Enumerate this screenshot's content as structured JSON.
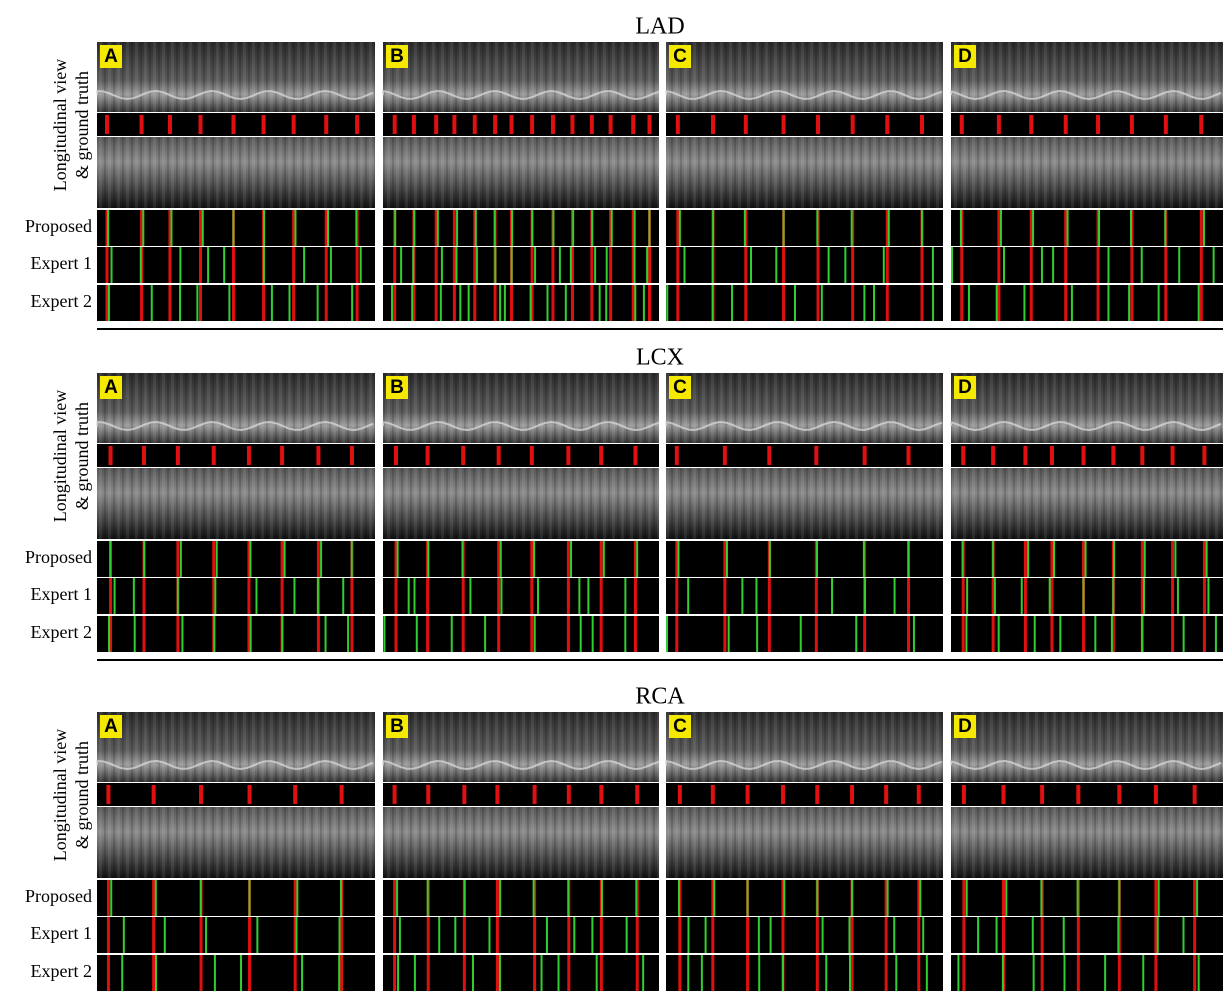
{
  "sections": [
    {
      "title": "LAD",
      "view_label": [
        "Longitudinal view",
        "& ground truth"
      ],
      "rows": [
        "Proposed",
        "Expert 1",
        "Expert 2"
      ],
      "panels": [
        "A",
        "B",
        "C",
        "D"
      ]
    },
    {
      "title": "LCX",
      "view_label": [
        "Longitudinal view",
        "& ground truth"
      ],
      "rows": [
        "Proposed",
        "Expert 1",
        "Expert 2"
      ],
      "panels": [
        "A",
        "B",
        "C",
        "D"
      ]
    },
    {
      "title": "RCA",
      "view_label": [
        "Longitudinal view",
        "& ground truth"
      ],
      "rows": [
        "Proposed",
        "Expert 1",
        "Expert 2"
      ],
      "panels": [
        "A",
        "B",
        "C",
        "D"
      ]
    }
  ]
}
